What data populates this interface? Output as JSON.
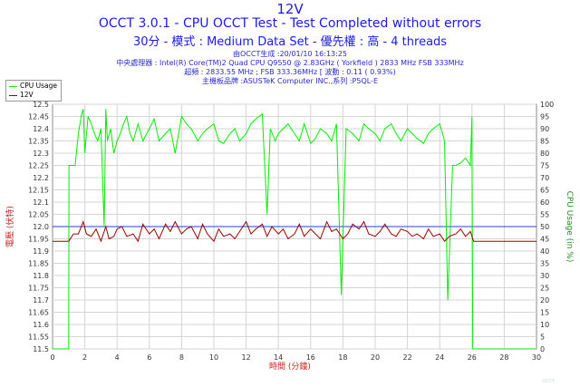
{
  "header": {
    "title1": "12V",
    "title2": "OCCT 3.0.1 - CPU OCCT Test - Test Completed without errors",
    "title3": "30分 - 模式 : Medium Data Set - 優先權 : 高 - 4 threads",
    "info1": "由OCCT生成 :20/01/10 16:13:25",
    "info2": "中央處理器 : Intel(R) Core(TM)2 Quad CPU Q9550 @ 2.83GHz ( Yorkfield ) 2833 MHz FSB 333MHz",
    "info3": "超頻 : 2833.55 MHz ; FSB 333.36MHz [ 波動 : 0.11 ( 0.93%)",
    "info4": "主機板品牌 :ASUSTeK Computer INC.,系列 :P5QL-E"
  },
  "footer": "OCCT",
  "chart_data": {
    "type": "line",
    "xlabel": "時間 (分鐘)",
    "ylabel": "電壓 (伏特)",
    "y2label": "CPU Usage (in %)",
    "xlim": [
      0,
      30
    ],
    "ylim": [
      11.5,
      12.5
    ],
    "y2lim": [
      0,
      100
    ],
    "xticks": [
      0,
      2,
      4,
      6,
      8,
      10,
      12,
      14,
      16,
      18,
      20,
      22,
      24,
      26,
      28,
      30
    ],
    "yticks": [
      11.5,
      11.55,
      11.6,
      11.65,
      11.7,
      11.75,
      11.8,
      11.85,
      11.9,
      11.95,
      12,
      12.05,
      12.1,
      12.15,
      12.2,
      12.25,
      12.3,
      12.35,
      12.4,
      12.45,
      12.5
    ],
    "y2ticks": [
      0,
      5,
      10,
      15,
      20,
      25,
      30,
      35,
      40,
      45,
      50,
      55,
      60,
      65,
      70,
      75,
      80,
      85,
      90,
      95,
      100
    ],
    "grid": true,
    "legend": "top-left",
    "reference_line": 12.0,
    "series": [
      {
        "name": "CPU Usage",
        "axis": "right",
        "color": "#00ee00",
        "x": [
          0,
          1.0,
          1.02,
          1.2,
          1.4,
          1.6,
          1.8,
          1.9,
          2.0,
          2.2,
          2.4,
          2.6,
          2.8,
          3.0,
          3.2,
          3.3,
          3.4,
          3.6,
          3.8,
          4.0,
          4.2,
          4.4,
          4.6,
          4.8,
          5.0,
          5.3,
          5.6,
          6.0,
          6.3,
          6.6,
          7.0,
          7.3,
          7.6,
          8.0,
          8.3,
          8.6,
          9.0,
          9.3,
          9.6,
          10.0,
          10.3,
          10.6,
          11.0,
          11.3,
          11.6,
          12.0,
          12.3,
          12.6,
          13.0,
          13.3,
          13.5,
          13.8,
          14.0,
          14.3,
          14.6,
          15.0,
          15.3,
          15.6,
          16.0,
          16.3,
          16.6,
          17.0,
          17.3,
          17.6,
          17.9,
          18.2,
          18.6,
          19.0,
          19.3,
          19.6,
          20.0,
          20.3,
          20.6,
          21.0,
          21.3,
          21.6,
          22.0,
          22.3,
          22.6,
          23.0,
          23.3,
          23.6,
          24.0,
          24.3,
          24.5,
          24.8,
          25.0,
          25.3,
          25.6,
          25.9,
          26.0,
          26.05,
          30
        ],
        "values": [
          0,
          0,
          75,
          75,
          75,
          88,
          96,
          98,
          80,
          95,
          92,
          88,
          85,
          90,
          50,
          98,
          85,
          90,
          80,
          85,
          88,
          92,
          95,
          88,
          85,
          92,
          85,
          90,
          94,
          85,
          88,
          90,
          80,
          95,
          92,
          90,
          85,
          88,
          90,
          92,
          85,
          84,
          88,
          90,
          85,
          88,
          92,
          94,
          96,
          55,
          90,
          85,
          88,
          90,
          92,
          88,
          85,
          92,
          84,
          86,
          90,
          88,
          85,
          92,
          22,
          90,
          88,
          85,
          92,
          90,
          88,
          85,
          90,
          92,
          88,
          85,
          90,
          88,
          86,
          84,
          88,
          90,
          92,
          85,
          20,
          75,
          75,
          76,
          78,
          75,
          95,
          0,
          0
        ]
      },
      {
        "name": "12V",
        "axis": "left",
        "color": "#990000",
        "x": [
          0,
          1.0,
          1.3,
          1.6,
          1.9,
          2.1,
          2.4,
          2.7,
          3.0,
          3.3,
          3.5,
          3.8,
          4.0,
          4.3,
          4.6,
          5.0,
          5.3,
          5.6,
          6.0,
          6.3,
          6.6,
          7.0,
          7.3,
          7.6,
          8.0,
          8.3,
          8.6,
          9.0,
          9.3,
          9.6,
          10.0,
          10.3,
          10.6,
          11.0,
          11.3,
          11.6,
          12.0,
          12.3,
          12.6,
          13.0,
          13.3,
          13.6,
          14.0,
          14.3,
          14.6,
          15.0,
          15.3,
          15.6,
          16.0,
          16.3,
          16.6,
          17.0,
          17.3,
          17.6,
          18.0,
          18.3,
          18.6,
          19.0,
          19.3,
          19.6,
          20.0,
          20.3,
          20.6,
          21.0,
          21.3,
          21.6,
          22.0,
          22.3,
          22.6,
          23.0,
          23.3,
          23.6,
          24.0,
          24.3,
          24.6,
          25.0,
          25.3,
          25.6,
          25.9,
          26.1,
          30
        ],
        "values": [
          11.94,
          11.94,
          11.97,
          11.97,
          12.02,
          11.97,
          11.96,
          11.99,
          11.94,
          12.0,
          11.95,
          11.96,
          11.99,
          12.0,
          11.96,
          11.97,
          11.94,
          12.01,
          11.97,
          11.99,
          11.95,
          12.01,
          11.98,
          12.02,
          11.97,
          11.99,
          12.0,
          11.95,
          12.01,
          11.97,
          11.94,
          11.99,
          11.96,
          11.97,
          11.95,
          11.98,
          12.02,
          11.97,
          11.99,
          12.01,
          11.96,
          12.0,
          11.97,
          11.99,
          11.95,
          11.97,
          12.01,
          11.96,
          11.99,
          11.97,
          11.95,
          12.02,
          11.98,
          11.99,
          11.95,
          11.97,
          12.01,
          11.99,
          12.02,
          11.97,
          11.96,
          11.98,
          12.01,
          11.97,
          11.96,
          11.99,
          11.98,
          11.96,
          11.97,
          11.95,
          11.99,
          11.96,
          11.97,
          11.94,
          11.96,
          11.97,
          11.99,
          11.96,
          11.98,
          11.94,
          11.94
        ]
      }
    ]
  }
}
